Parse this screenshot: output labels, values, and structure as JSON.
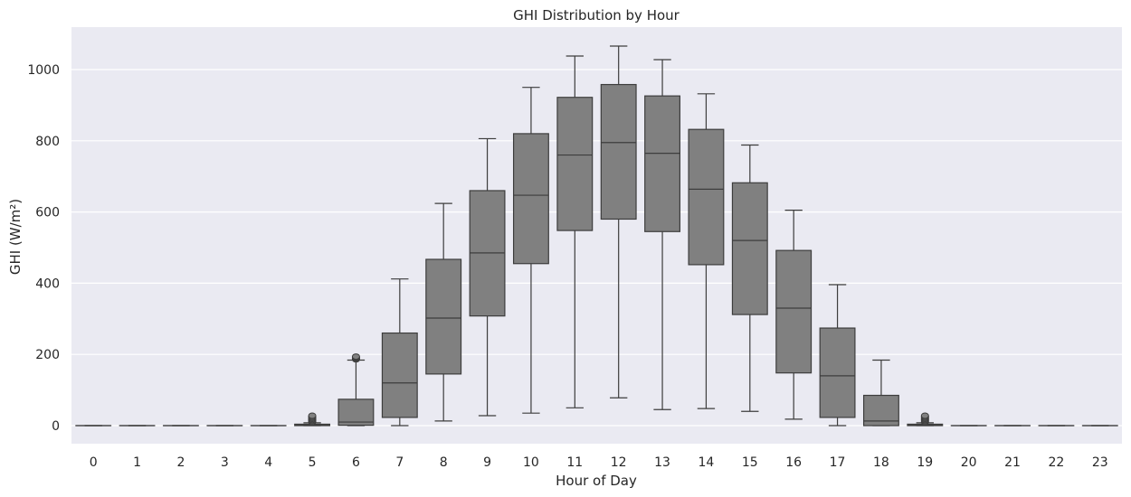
{
  "chart_data": {
    "type": "box",
    "title": "GHI Distribution by Hour",
    "xlabel": "Hour of Day",
    "ylabel": "GHI (W/m²)",
    "ylim": [
      -50,
      1115
    ],
    "yticks": [
      0,
      200,
      400,
      600,
      800,
      1000
    ],
    "grid": true,
    "colors": {
      "background": "#eaeaf2",
      "grid": "#ffffff",
      "box_fill": "#808080",
      "box_edge": "#3d3d3d",
      "text": "#262626"
    },
    "categories": [
      "0",
      "1",
      "2",
      "3",
      "4",
      "5",
      "6",
      "7",
      "8",
      "9",
      "10",
      "11",
      "12",
      "13",
      "14",
      "15",
      "16",
      "17",
      "18",
      "19",
      "20",
      "21",
      "22",
      "23"
    ],
    "boxes": [
      {
        "min": 0,
        "q1": 0,
        "median": 0,
        "q3": 0,
        "max": 0,
        "outliers": []
      },
      {
        "min": 0,
        "q1": 0,
        "median": 0,
        "q3": 0,
        "max": 0,
        "outliers": []
      },
      {
        "min": 0,
        "q1": 0,
        "median": 0,
        "q3": 0,
        "max": 0,
        "outliers": []
      },
      {
        "min": 0,
        "q1": 0,
        "median": 0,
        "q3": 0,
        "max": 0,
        "outliers": []
      },
      {
        "min": 0,
        "q1": 0,
        "median": 0,
        "q3": 0,
        "max": 0,
        "outliers": []
      },
      {
        "min": 0,
        "q1": 0,
        "median": 1,
        "q3": 4,
        "max": 8,
        "outliers": [
          10,
          13,
          16,
          19,
          22,
          25,
          28
        ]
      },
      {
        "min": 0,
        "q1": 1,
        "median": 10,
        "q3": 74,
        "max": 184,
        "outliers": [
          186,
          188,
          190,
          192,
          194
        ]
      },
      {
        "min": 0,
        "q1": 23,
        "median": 120,
        "q3": 260,
        "max": 412,
        "outliers": []
      },
      {
        "min": 13,
        "q1": 145,
        "median": 302,
        "q3": 467,
        "max": 624,
        "outliers": []
      },
      {
        "min": 28,
        "q1": 308,
        "median": 485,
        "q3": 660,
        "max": 806,
        "outliers": []
      },
      {
        "min": 35,
        "q1": 455,
        "median": 647,
        "q3": 820,
        "max": 950,
        "outliers": []
      },
      {
        "min": 50,
        "q1": 548,
        "median": 760,
        "q3": 922,
        "max": 1038,
        "outliers": []
      },
      {
        "min": 78,
        "q1": 580,
        "median": 795,
        "q3": 958,
        "max": 1066,
        "outliers": []
      },
      {
        "min": 45,
        "q1": 545,
        "median": 765,
        "q3": 926,
        "max": 1028,
        "outliers": []
      },
      {
        "min": 48,
        "q1": 452,
        "median": 664,
        "q3": 832,
        "max": 932,
        "outliers": []
      },
      {
        "min": 40,
        "q1": 312,
        "median": 520,
        "q3": 682,
        "max": 788,
        "outliers": []
      },
      {
        "min": 18,
        "q1": 148,
        "median": 330,
        "q3": 492,
        "max": 605,
        "outliers": []
      },
      {
        "min": 0,
        "q1": 23,
        "median": 140,
        "q3": 274,
        "max": 396,
        "outliers": []
      },
      {
        "min": 0,
        "q1": 0,
        "median": 13,
        "q3": 85,
        "max": 184,
        "outliers": []
      },
      {
        "min": 0,
        "q1": 0,
        "median": 1,
        "q3": 4,
        "max": 8,
        "outliers": [
          10,
          13,
          16,
          19,
          22,
          25,
          28
        ]
      },
      {
        "min": 0,
        "q1": 0,
        "median": 0,
        "q3": 0,
        "max": 0,
        "outliers": []
      },
      {
        "min": 0,
        "q1": 0,
        "median": 0,
        "q3": 0,
        "max": 0,
        "outliers": []
      },
      {
        "min": 0,
        "q1": 0,
        "median": 0,
        "q3": 0,
        "max": 0,
        "outliers": []
      },
      {
        "min": 0,
        "q1": 0,
        "median": 0,
        "q3": 0,
        "max": 0,
        "outliers": []
      }
    ]
  }
}
